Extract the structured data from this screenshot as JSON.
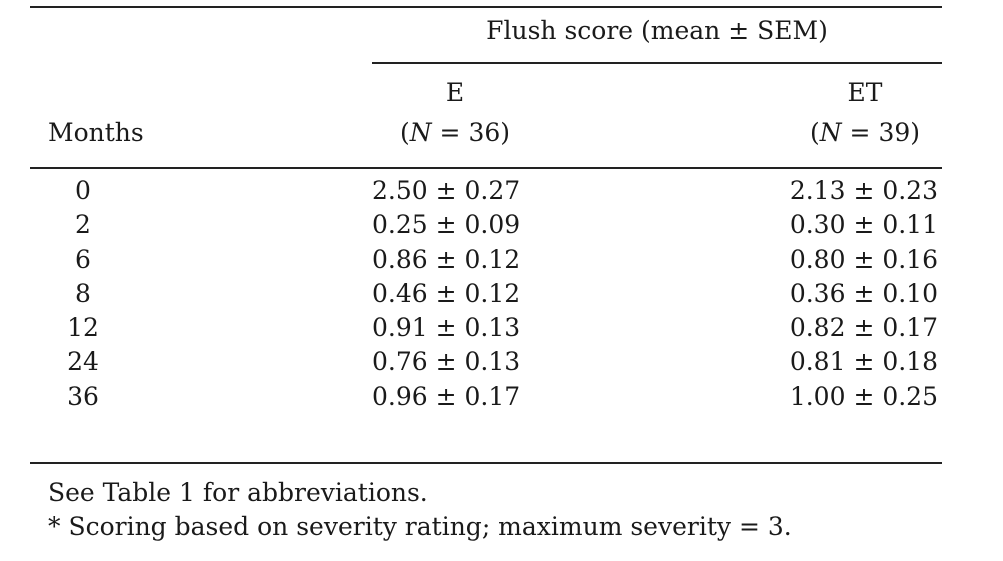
{
  "table": {
    "spanner": "Flush score (mean ± SEM)",
    "stub_header": "Months",
    "columns": [
      {
        "label": "E",
        "n_prefix": "(",
        "n_symbol": "N",
        "n_value": " = 36)"
      },
      {
        "label": "ET",
        "n_prefix": "(",
        "n_symbol": "N",
        "n_value": " = 39)"
      }
    ],
    "rows": [
      {
        "month": "0",
        "e": "2.50 ± 0.27",
        "et": "2.13 ± 0.23"
      },
      {
        "month": "2",
        "e": "0.25 ± 0.09",
        "et": "0.30 ± 0.11"
      },
      {
        "month": "6",
        "e": "0.86 ± 0.12",
        "et": "0.80 ± 0.16"
      },
      {
        "month": "8",
        "e": "0.46 ± 0.12",
        "et": "0.36 ± 0.10"
      },
      {
        "month": "12",
        "e": "0.91 ± 0.13",
        "et": "0.82 ± 0.17"
      },
      {
        "month": "24",
        "e": "0.76 ± 0.13",
        "et": "0.81 ± 0.18"
      },
      {
        "month": "36",
        "e": "0.96 ± 0.17",
        "et": "1.00 ± 0.25"
      }
    ]
  },
  "footnotes": [
    "See Table 1 for abbreviations.",
    "* Scoring based on severity rating; maximum severity = 3."
  ]
}
